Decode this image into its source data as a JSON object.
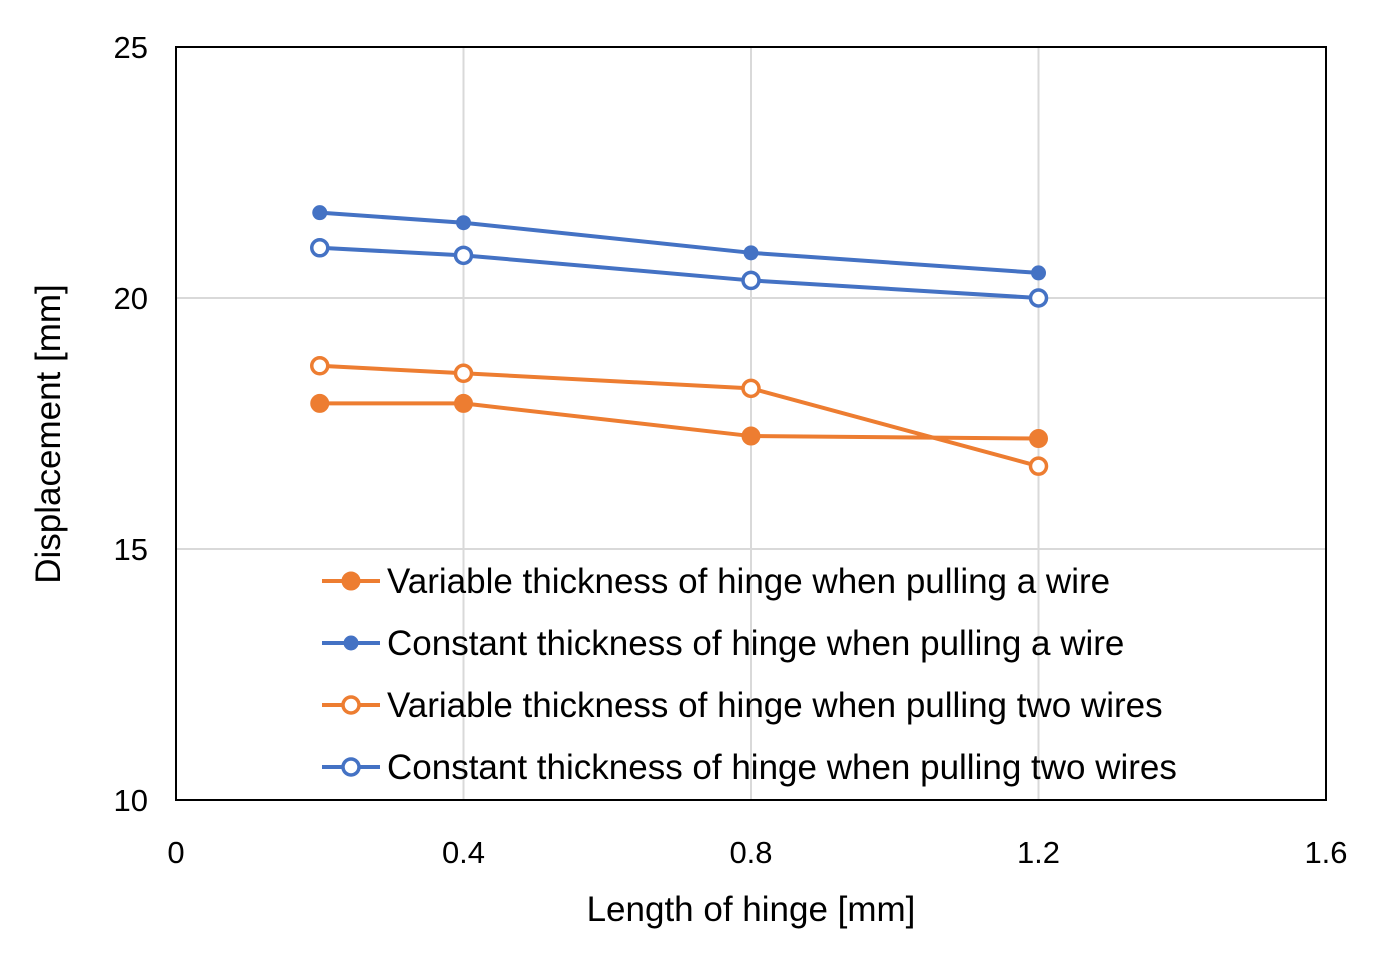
{
  "chart_data": {
    "type": "line",
    "title": "",
    "xlabel": "Length of hinge [mm]",
    "ylabel": "Displacement [mm]",
    "xlim": [
      0,
      1.6
    ],
    "ylim": [
      10,
      25
    ],
    "xticks": [
      "0",
      "0.4",
      "0.8",
      "1.2",
      "1.6"
    ],
    "xtick_values": [
      0,
      0.4,
      0.8,
      1.2,
      1.6
    ],
    "yticks": [
      "10",
      "15",
      "20",
      "25"
    ],
    "ytick_values": [
      10,
      15,
      20,
      25
    ],
    "grid": true,
    "legend_position": "bottom-right",
    "series": [
      {
        "name": "Variable thickness of hinge when pulling a wire",
        "color": "#ED7D31",
        "marker": "filled-circle",
        "x": [
          0.2,
          0.4,
          0.8,
          1.2
        ],
        "y": [
          17.9,
          17.9,
          17.25,
          17.2
        ]
      },
      {
        "name": "Constant thickness of hinge when pulling a wire",
        "color": "#4472C4",
        "marker": "filled-circle",
        "x": [
          0.2,
          0.4,
          0.8,
          1.2
        ],
        "y": [
          21.7,
          21.5,
          20.9,
          20.5
        ]
      },
      {
        "name": "Variable thickness of hinge when pulling two wires",
        "color": "#ED7D31",
        "marker": "open-circle",
        "x": [
          0.2,
          0.4,
          0.8,
          1.2
        ],
        "y": [
          18.65,
          18.5,
          18.2,
          16.65
        ]
      },
      {
        "name": "Constant thickness of hinge when pulling two wires",
        "color": "#4472C4",
        "marker": "open-circle",
        "x": [
          0.2,
          0.4,
          0.8,
          1.2
        ],
        "y": [
          21.0,
          20.85,
          20.35,
          20.0
        ]
      }
    ]
  }
}
